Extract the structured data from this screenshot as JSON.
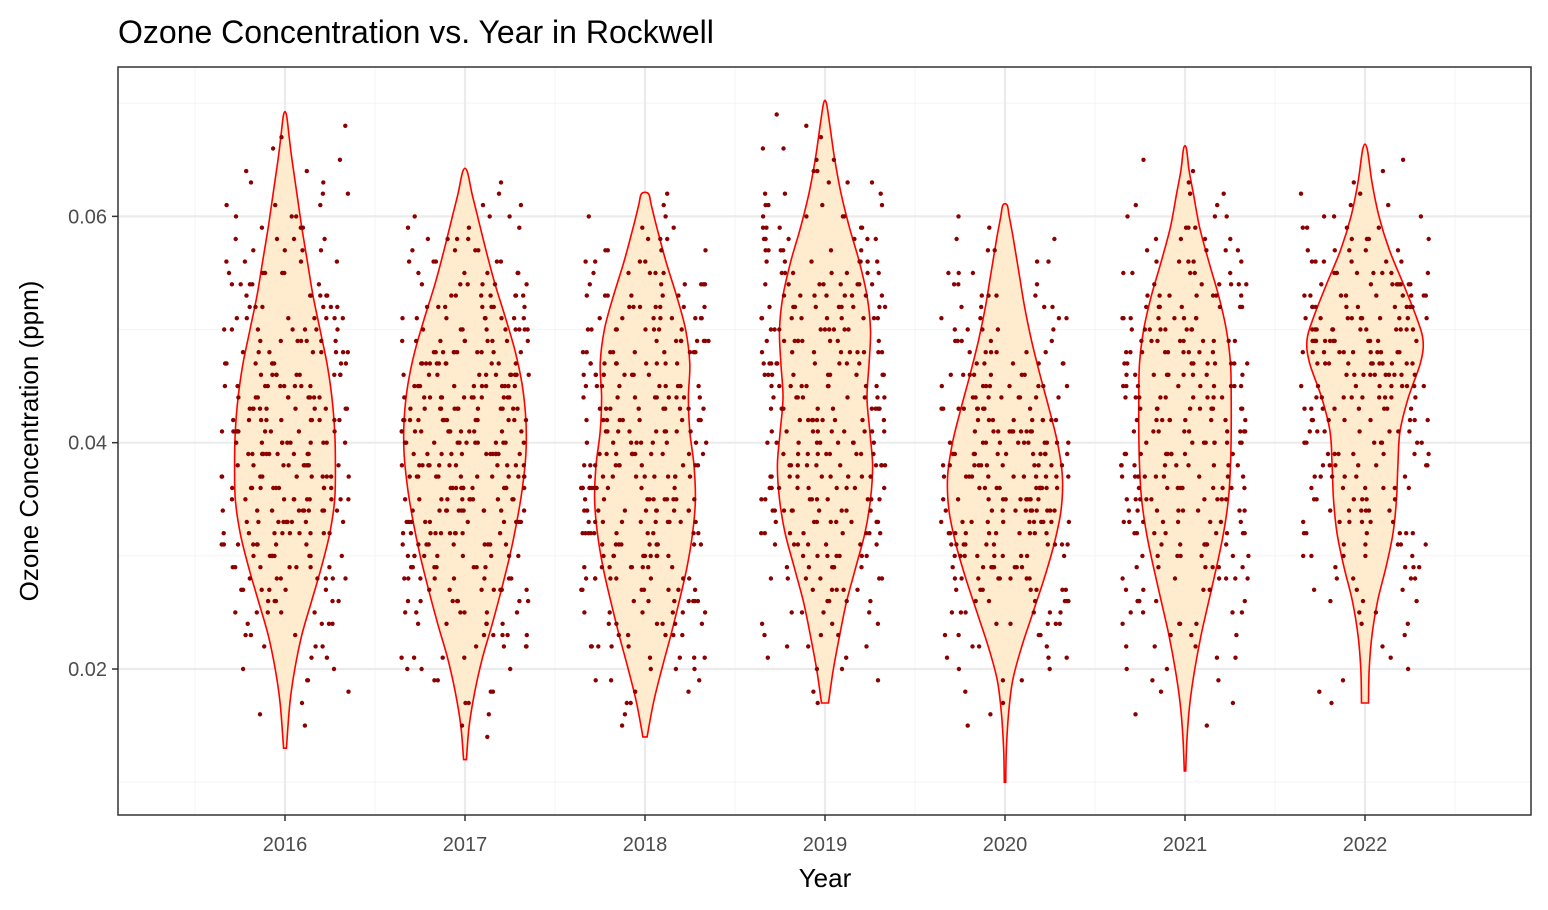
{
  "chart_data": {
    "type": "violin",
    "title": "Ozone Concentration vs. Year in Rockwell",
    "xlabel": "Year",
    "ylabel": "Ozone Concentration (ppm)",
    "categories": [
      "2016",
      "2017",
      "2018",
      "2019",
      "2020",
      "2021",
      "2022"
    ],
    "y_ticks": [
      0.02,
      0.04,
      0.06
    ],
    "y_tick_labels": [
      "0.02",
      "0.04",
      "0.06"
    ],
    "ylim": [
      0.0071,
      0.0732
    ],
    "grid": true,
    "legend": "none",
    "colors": {
      "violin_fill": "#FFEBCD",
      "violin_outline": "#FF0000",
      "points": "#8B0000",
      "grid_major": "#EBEBEB",
      "grid_minor": "#F5F5F5",
      "panel_border": "#333333"
    },
    "violins": [
      {
        "year": "2016",
        "min": 0.013,
        "max": 0.069,
        "profile": [
          [
            0.013,
            0.02
          ],
          [
            0.017,
            0.07
          ],
          [
            0.02,
            0.14
          ],
          [
            0.023,
            0.24
          ],
          [
            0.026,
            0.38
          ],
          [
            0.029,
            0.52
          ],
          [
            0.032,
            0.64
          ],
          [
            0.035,
            0.71
          ],
          [
            0.038,
            0.72
          ],
          [
            0.041,
            0.71
          ],
          [
            0.044,
            0.67
          ],
          [
            0.047,
            0.6
          ],
          [
            0.05,
            0.5
          ],
          [
            0.053,
            0.4
          ],
          [
            0.056,
            0.32
          ],
          [
            0.059,
            0.24
          ],
          [
            0.062,
            0.17
          ],
          [
            0.065,
            0.1
          ],
          [
            0.067,
            0.06
          ],
          [
            0.069,
            0.02
          ]
        ]
      },
      {
        "year": "2017",
        "min": 0.012,
        "max": 0.064,
        "profile": [
          [
            0.012,
            0.02
          ],
          [
            0.015,
            0.06
          ],
          [
            0.018,
            0.14
          ],
          [
            0.021,
            0.25
          ],
          [
            0.024,
            0.39
          ],
          [
            0.027,
            0.52
          ],
          [
            0.03,
            0.64
          ],
          [
            0.033,
            0.74
          ],
          [
            0.036,
            0.82
          ],
          [
            0.039,
            0.87
          ],
          [
            0.042,
            0.87
          ],
          [
            0.045,
            0.82
          ],
          [
            0.048,
            0.72
          ],
          [
            0.051,
            0.58
          ],
          [
            0.054,
            0.43
          ],
          [
            0.057,
            0.3
          ],
          [
            0.06,
            0.18
          ],
          [
            0.062,
            0.1
          ],
          [
            0.064,
            0.03
          ]
        ]
      },
      {
        "year": "2018",
        "min": 0.014,
        "max": 0.062,
        "profile": [
          [
            0.014,
            0.03
          ],
          [
            0.017,
            0.12
          ],
          [
            0.02,
            0.24
          ],
          [
            0.023,
            0.37
          ],
          [
            0.026,
            0.49
          ],
          [
            0.029,
            0.6
          ],
          [
            0.032,
            0.68
          ],
          [
            0.035,
            0.72
          ],
          [
            0.038,
            0.7
          ],
          [
            0.041,
            0.64
          ],
          [
            0.044,
            0.62
          ],
          [
            0.047,
            0.64
          ],
          [
            0.05,
            0.58
          ],
          [
            0.053,
            0.45
          ],
          [
            0.056,
            0.3
          ],
          [
            0.059,
            0.17
          ],
          [
            0.061,
            0.09
          ],
          [
            0.062,
            0.05
          ]
        ]
      },
      {
        "year": "2019",
        "min": 0.017,
        "max": 0.07,
        "profile": [
          [
            0.017,
            0.05
          ],
          [
            0.02,
            0.12
          ],
          [
            0.023,
            0.21
          ],
          [
            0.026,
            0.31
          ],
          [
            0.029,
            0.44
          ],
          [
            0.032,
            0.57
          ],
          [
            0.035,
            0.65
          ],
          [
            0.038,
            0.68
          ],
          [
            0.041,
            0.64
          ],
          [
            0.044,
            0.6
          ],
          [
            0.047,
            0.63
          ],
          [
            0.05,
            0.65
          ],
          [
            0.053,
            0.6
          ],
          [
            0.056,
            0.49
          ],
          [
            0.059,
            0.35
          ],
          [
            0.062,
            0.23
          ],
          [
            0.065,
            0.14
          ],
          [
            0.068,
            0.07
          ],
          [
            0.07,
            0.02
          ]
        ]
      },
      {
        "year": "2020",
        "min": 0.01,
        "max": 0.061,
        "profile": [
          [
            0.01,
            0.01
          ],
          [
            0.013,
            0.02
          ],
          [
            0.016,
            0.05
          ],
          [
            0.019,
            0.11
          ],
          [
            0.022,
            0.24
          ],
          [
            0.025,
            0.4
          ],
          [
            0.028,
            0.56
          ],
          [
            0.031,
            0.7
          ],
          [
            0.034,
            0.8
          ],
          [
            0.037,
            0.82
          ],
          [
            0.04,
            0.75
          ],
          [
            0.043,
            0.63
          ],
          [
            0.046,
            0.5
          ],
          [
            0.049,
            0.38
          ],
          [
            0.052,
            0.28
          ],
          [
            0.055,
            0.2
          ],
          [
            0.058,
            0.12
          ],
          [
            0.06,
            0.06
          ],
          [
            0.061,
            0.03
          ]
        ]
      },
      {
        "year": "2021",
        "min": 0.011,
        "max": 0.066,
        "profile": [
          [
            0.011,
            0.01
          ],
          [
            0.014,
            0.03
          ],
          [
            0.017,
            0.07
          ],
          [
            0.02,
            0.14
          ],
          [
            0.023,
            0.23
          ],
          [
            0.026,
            0.34
          ],
          [
            0.029,
            0.45
          ],
          [
            0.032,
            0.55
          ],
          [
            0.035,
            0.62
          ],
          [
            0.038,
            0.65
          ],
          [
            0.041,
            0.66
          ],
          [
            0.044,
            0.66
          ],
          [
            0.047,
            0.65
          ],
          [
            0.05,
            0.59
          ],
          [
            0.053,
            0.48
          ],
          [
            0.056,
            0.34
          ],
          [
            0.059,
            0.21
          ],
          [
            0.062,
            0.12
          ],
          [
            0.064,
            0.06
          ],
          [
            0.066,
            0.02
          ]
        ]
      },
      {
        "year": "2022",
        "min": 0.017,
        "max": 0.066,
        "profile": [
          [
            0.017,
            0.05
          ],
          [
            0.02,
            0.06
          ],
          [
            0.023,
            0.1
          ],
          [
            0.026,
            0.18
          ],
          [
            0.029,
            0.3
          ],
          [
            0.032,
            0.4
          ],
          [
            0.035,
            0.45
          ],
          [
            0.038,
            0.47
          ],
          [
            0.041,
            0.5
          ],
          [
            0.044,
            0.62
          ],
          [
            0.047,
            0.79
          ],
          [
            0.049,
            0.83
          ],
          [
            0.051,
            0.74
          ],
          [
            0.054,
            0.55
          ],
          [
            0.057,
            0.35
          ],
          [
            0.06,
            0.2
          ],
          [
            0.063,
            0.1
          ],
          [
            0.066,
            0.03
          ]
        ]
      }
    ]
  }
}
